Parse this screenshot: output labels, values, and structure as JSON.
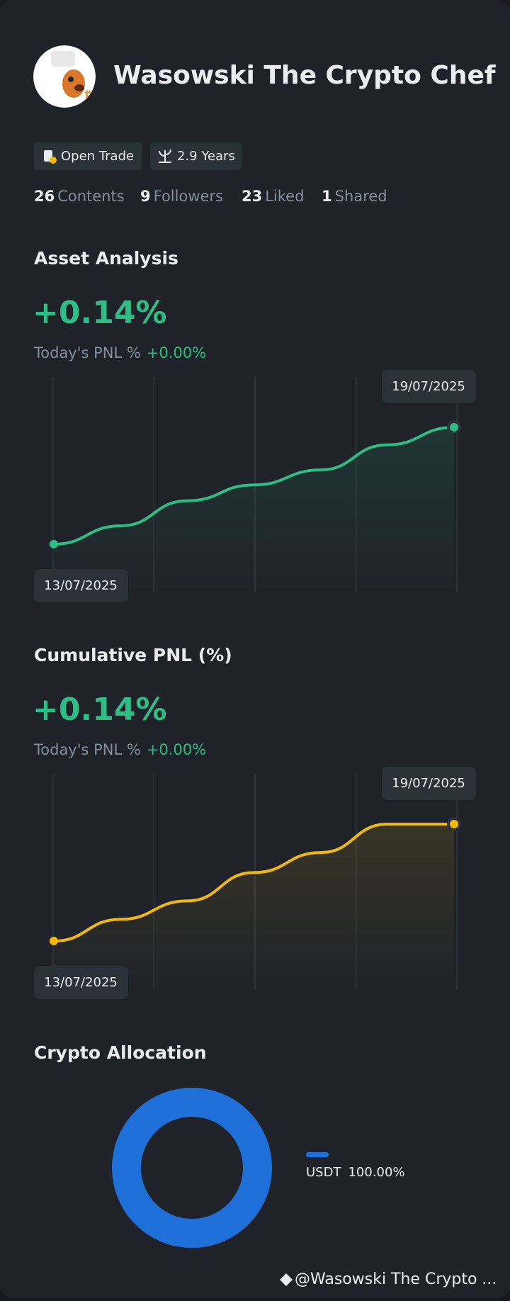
{
  "profile": {
    "name": "Wasowski The Crypto Chef",
    "badges": [
      "Open Trade",
      "2.9 Years"
    ],
    "stats": [
      {
        "count": 26,
        "label": "Contents"
      },
      {
        "count": 9,
        "label": "Followers"
      },
      {
        "count": 23,
        "label": "Liked"
      },
      {
        "count": 1,
        "label": "Shared"
      }
    ]
  },
  "chart_data": [
    {
      "type": "line",
      "title": "Asset Analysis",
      "headline": "+0.14%",
      "today_label": "Today's PNL %",
      "today_value": "+0.00%",
      "categories": [
        "13/07/2025",
        null,
        null,
        null,
        null,
        null,
        "19/07/2025"
      ],
      "series": [
        {
          "color": "#2ebd85",
          "values": [
            0,
            0.022,
            0.052,
            0.071,
            0.089,
            0.119,
            0.14
          ]
        }
      ]
    },
    {
      "type": "line",
      "title": "Cumulative PNL (%)",
      "headline": "+0.14%",
      "today_label": "Today's PNL %",
      "today_value": "+0.00%",
      "categories": [
        "13/07/2025",
        null,
        null,
        null,
        null,
        null,
        "19/07/2025"
      ],
      "series": [
        {
          "color": "#f0b90b",
          "values": [
            0,
            0.026,
            0.048,
            0.082,
            0.106,
            0.14,
            0.14
          ]
        }
      ]
    },
    {
      "type": "pie",
      "title": "Crypto Allocation",
      "categories": [
        "USDT"
      ],
      "values": [
        100
      ],
      "value_labels": [
        "100.00%"
      ],
      "colors": [
        "#1f6fd8"
      ]
    }
  ],
  "footer": "@Wasowski The Crypto ..."
}
